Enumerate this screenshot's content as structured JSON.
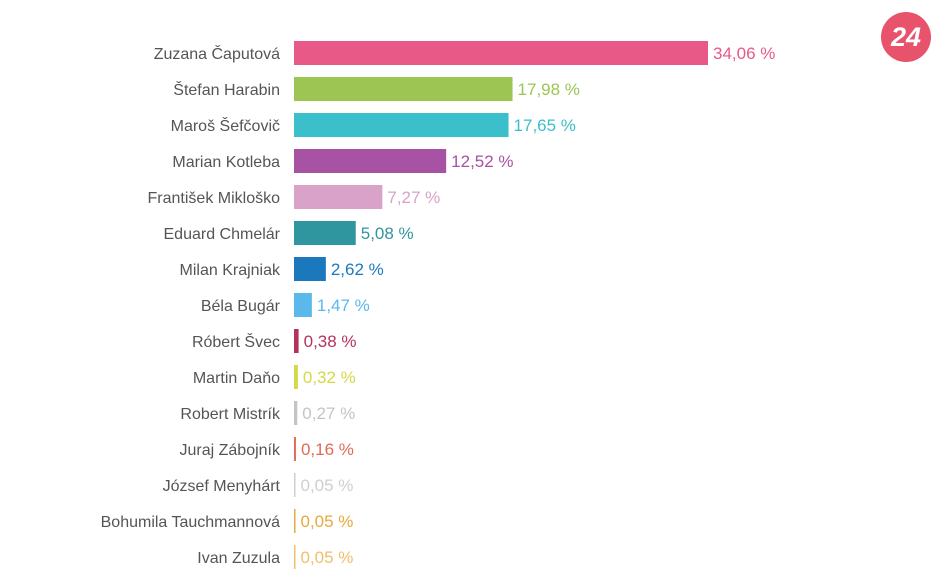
{
  "logo": {
    "text": "24",
    "color": "#e8526a"
  },
  "chart_data": {
    "type": "bar",
    "orientation": "horizontal",
    "title": "",
    "xlabel": "",
    "ylabel": "",
    "value_suffix": " %",
    "decimal_separator": ",",
    "xlim": [
      0,
      34.06
    ],
    "grid": false,
    "legend": "none",
    "categories": [
      "Zuzana Čaputová",
      "Štefan Harabin",
      "Maroš Šefčovič",
      "Marian Kotleba",
      "František Mikloško",
      "Eduard Chmelár",
      "Milan Krajniak",
      "Béla Bugár",
      "Róbert Švec",
      "Martin Daňo",
      "Robert Mistrík",
      "Juraj Zábojník",
      "József Menyhárt",
      "Bohumila Tauchmannová",
      "Ivan Zuzula"
    ],
    "values": [
      34.06,
      17.98,
      17.65,
      12.52,
      7.27,
      5.08,
      2.62,
      1.47,
      0.38,
      0.32,
      0.27,
      0.16,
      0.05,
      0.05,
      0.05
    ],
    "value_labels": [
      "34,06 %",
      "17,98 %",
      "17,65 %",
      "12,52 %",
      "7,27 %",
      "5,08 %",
      "2,62 %",
      "1,47 %",
      "0,38 %",
      "0,32 %",
      "0,27 %",
      "0,16 %",
      "0,05 %",
      "0,05 %",
      "0,05 %"
    ],
    "colors": [
      "#e85987",
      "#9cc554",
      "#3bbfca",
      "#a752a3",
      "#d8a2c9",
      "#2f96a0",
      "#1c78bd",
      "#5bb8ea",
      "#b5325b",
      "#d4d948",
      "#c4c4c4",
      "#e06a53",
      "#cfcfcf",
      "#e7a93c",
      "#f0bf6a"
    ]
  }
}
